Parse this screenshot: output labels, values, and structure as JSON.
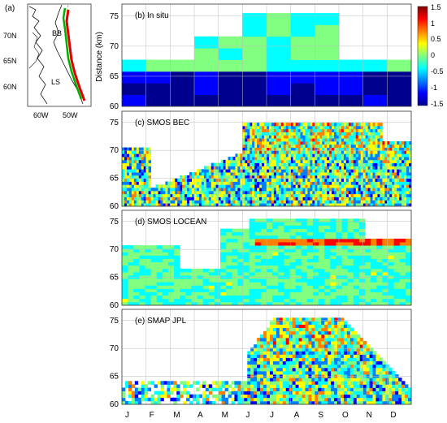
{
  "map": {
    "label": "(a)",
    "lat_labels": [
      "70N",
      "65N",
      "60N"
    ],
    "lon_labels": [
      "60W",
      "50W"
    ],
    "region_labels": [
      "BB",
      "LS"
    ]
  },
  "chart_data": [
    {
      "type": "heatmap",
      "title": "(b) In situ",
      "ylabel": "Distance (km)",
      "ylim": [
        60,
        77
      ],
      "yticks": [
        60,
        65,
        70,
        75
      ],
      "xticks": [
        "J",
        "F",
        "M",
        "A",
        "M",
        "J",
        "J",
        "A",
        "S",
        "O",
        "N",
        "D"
      ],
      "grid": true,
      "colorscale": "jet",
      "clim": [
        -1.5,
        1.5
      ]
    },
    {
      "type": "heatmap",
      "title": "(c) SMOS BEC",
      "ylim": [
        60,
        77
      ],
      "yticks": [
        60,
        65,
        70,
        75
      ],
      "xticks": [
        "J",
        "F",
        "M",
        "A",
        "M",
        "J",
        "J",
        "A",
        "S",
        "O",
        "N",
        "D"
      ],
      "grid": true,
      "colorscale": "jet",
      "clim": [
        -1.5,
        1.5
      ]
    },
    {
      "type": "heatmap",
      "title": "(d) SMOS LOCEAN",
      "ylim": [
        60,
        77
      ],
      "yticks": [
        60,
        65,
        70,
        75
      ],
      "xticks": [
        "J",
        "F",
        "M",
        "A",
        "M",
        "J",
        "J",
        "A",
        "S",
        "O",
        "N",
        "D"
      ],
      "grid": true,
      "colorscale": "jet",
      "clim": [
        -1.5,
        1.5
      ]
    },
    {
      "type": "heatmap",
      "title": "(e) SMAP JPL",
      "ylim": [
        60,
        77
      ],
      "yticks": [
        60,
        65,
        70,
        75
      ],
      "xticks": [
        "J",
        "F",
        "M",
        "A",
        "M",
        "J",
        "J",
        "A",
        "S",
        "O",
        "N",
        "D"
      ],
      "grid": true,
      "colorscale": "jet",
      "clim": [
        -1.5,
        1.5
      ]
    }
  ],
  "colorbar": {
    "ticks": [
      "1.5",
      "1",
      "0.5",
      "0",
      "-0.5",
      "-1",
      "-1.5"
    ]
  },
  "palette": [
    "#00008f",
    "#0000ff",
    "#0080ff",
    "#00ffff",
    "#80ff80",
    "#ffff00",
    "#ff8000",
    "#ff0000",
    "#800000"
  ]
}
